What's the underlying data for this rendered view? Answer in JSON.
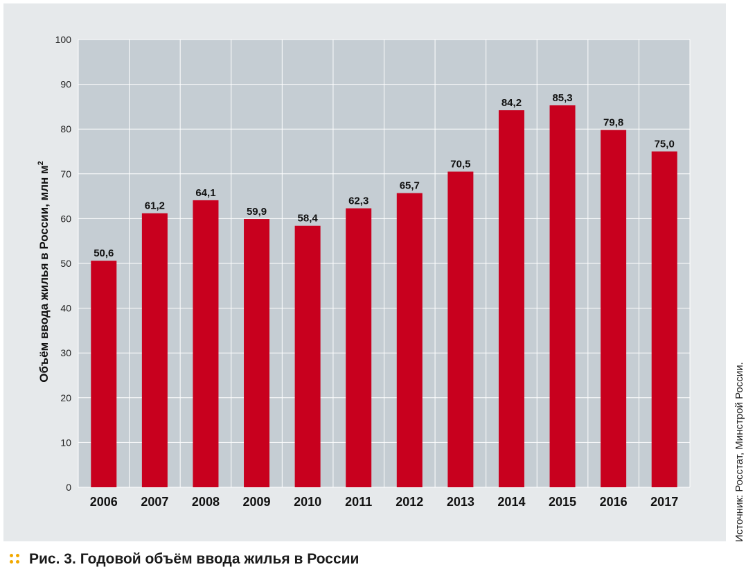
{
  "chart_data": {
    "type": "bar",
    "title": "Годовой объём ввода жилья в России",
    "ylabel": "Объём ввода жилья в России, млн м",
    "ylabel_superscript": "2",
    "xlabel": "",
    "categories": [
      "2006",
      "2007",
      "2008",
      "2009",
      "2010",
      "2011",
      "2012",
      "2013",
      "2014",
      "2015",
      "2016",
      "2017"
    ],
    "values": [
      50.6,
      61.2,
      64.1,
      59.9,
      58.4,
      62.3,
      65.7,
      70.5,
      84.2,
      85.3,
      79.8,
      75.0
    ],
    "value_labels": [
      "50,6",
      "61,2",
      "64,1",
      "59,9",
      "58,4",
      "62,3",
      "65,7",
      "70,5",
      "84,2",
      "85,3",
      "79,8",
      "75,0"
    ],
    "ylim": [
      0,
      100
    ],
    "yticks": [
      0,
      10,
      20,
      30,
      40,
      50,
      60,
      70,
      80,
      90,
      100
    ],
    "grid": true,
    "bar_color": "#c8001e",
    "plot_background": "#c5cdd3",
    "grid_color": "#ffffff"
  },
  "caption": {
    "label": "Рис. 3.",
    "text": "Годовой объём ввода жилья в России",
    "dots_color": "#f2a900"
  },
  "source_note": "Источник: Росстат, Минстрой России."
}
